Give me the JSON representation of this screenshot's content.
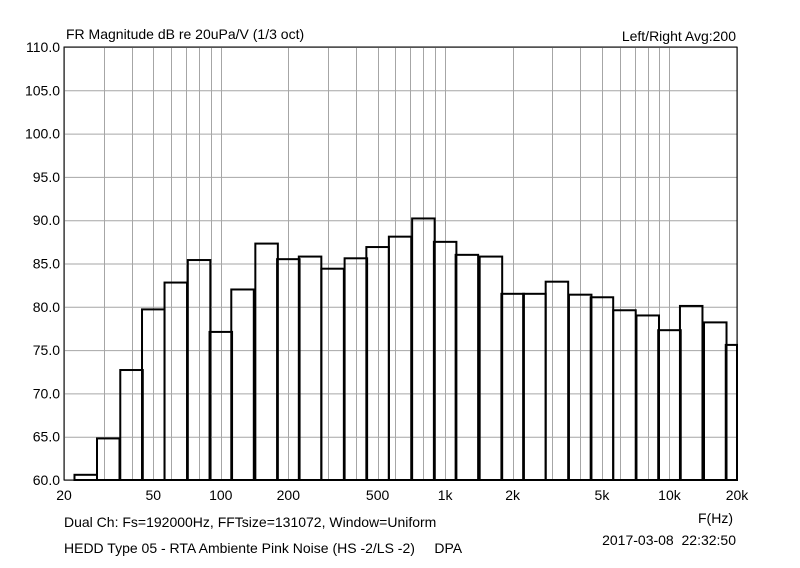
{
  "header": {
    "title": "FR Magnitude dB re 20uPa/V (1/3 oct)",
    "right": "Left/Right  Avg:200"
  },
  "footer": {
    "info": "Dual Ch: Fs=192000Hz, FFTsize=131072, Window=Uniform",
    "name": "HEDD Type 05 - RTA Ambiente Pink Noise (HS -2/LS -2)     DPA",
    "timestamp": "2017-03-08  22:32:50"
  },
  "chart_data": {
    "type": "bar",
    "title": "FR Magnitude dB re 20uPa/V (1/3 oct)",
    "xlabel": "F(Hz)",
    "ylabel": "",
    "xscale": "log",
    "xlim": [
      20,
      20000
    ],
    "ylim": [
      60,
      110
    ],
    "grid": true,
    "bar_style": "step-outline",
    "y_ticks": [
      "60.0",
      "65.0",
      "70.0",
      "75.0",
      "80.0",
      "85.0",
      "90.0",
      "95.0",
      "100.0",
      "105.0",
      "110.0"
    ],
    "y_tick_values": [
      60,
      65,
      70,
      75,
      80,
      85,
      90,
      95,
      100,
      105,
      110
    ],
    "x_ticks": [
      "20",
      "50",
      "100",
      "200",
      "500",
      "1k",
      "2k",
      "5k",
      "10k",
      "20k"
    ],
    "x_tick_values": [
      20,
      50,
      100,
      200,
      500,
      1000,
      2000,
      5000,
      10000,
      20000
    ],
    "x_grid": [
      20,
      30,
      40,
      50,
      60,
      70,
      80,
      90,
      100,
      200,
      300,
      400,
      500,
      600,
      700,
      800,
      900,
      1000,
      2000,
      3000,
      4000,
      5000,
      6000,
      7000,
      8000,
      9000,
      10000,
      20000
    ],
    "categories": [
      25,
      31.5,
      40,
      50,
      63,
      80,
      100,
      125,
      160,
      200,
      250,
      315,
      400,
      500,
      630,
      800,
      1000,
      1250,
      1600,
      2000,
      2500,
      3150,
      4000,
      5000,
      6300,
      8000,
      10000,
      12500,
      16000,
      20000
    ],
    "values": [
      60.6,
      64.8,
      72.7,
      79.7,
      82.8,
      85.4,
      77.1,
      82.0,
      87.3,
      85.5,
      85.8,
      84.4,
      85.6,
      86.9,
      88.1,
      90.2,
      87.5,
      86.0,
      85.8,
      81.5,
      81.5,
      82.9,
      81.4,
      81.1,
      79.6,
      79.0,
      77.3,
      80.1,
      78.2,
      75.6
    ]
  }
}
